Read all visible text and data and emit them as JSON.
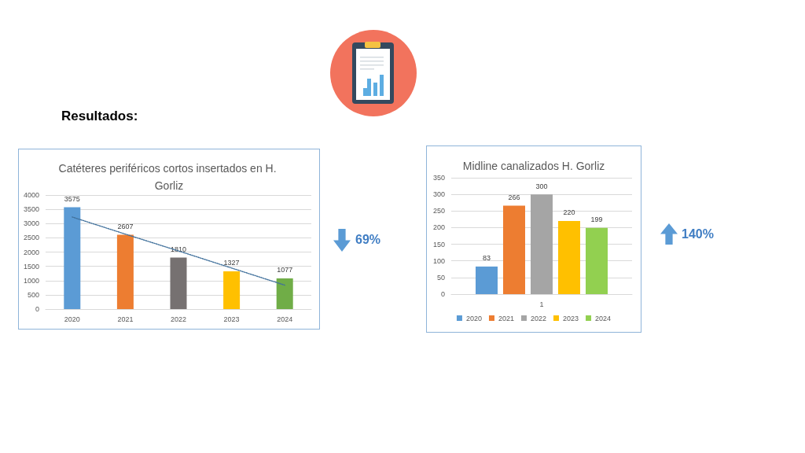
{
  "chart_data": [
    {
      "type": "bar",
      "title": "Catéteres periféricos cortos insertados en H. Gorliz",
      "categories": [
        "2020",
        "2021",
        "2022",
        "2023",
        "2024"
      ],
      "series": [
        {
          "values": [
            3575,
            2607,
            1810,
            1327,
            1077
          ],
          "colors": [
            "#5b9bd5",
            "#ed7d31",
            "#767171",
            "#ffc000",
            "#70ad47"
          ]
        },
        {
          "type": "line",
          "values": [
            3230,
            2630,
            2040,
            1440,
            840
          ],
          "value_labels": [
            null,
            null,
            null,
            null,
            null
          ],
          "color": "#41719c",
          "line_style": "dotted",
          "marker": "none"
        }
      ],
      "ylim": [
        0,
        4000
      ],
      "yticks": [
        0,
        500,
        1000,
        1500,
        2000,
        2500,
        3000,
        3500,
        4000
      ],
      "grid": "y",
      "data_labels": true,
      "annotations": [
        "Resultados:",
        "69%"
      ]
    },
    {
      "type": "bar",
      "title": "Midline canalizados H. Gorliz",
      "categories": [
        "1"
      ],
      "series": [
        {
          "name": "2020",
          "color": "#5b9bd5",
          "values": [
            83
          ]
        },
        {
          "name": "2021",
          "color": "#ed7d31",
          "values": [
            266
          ]
        },
        {
          "name": "2022",
          "color": "#a5a5a5",
          "values": [
            300
          ]
        },
        {
          "name": "2023",
          "color": "#ffc000",
          "values": [
            220
          ]
        },
        {
          "name": "2024",
          "color": "#92d050",
          "values": [
            199
          ]
        }
      ],
      "ylim": [
        0,
        350
      ],
      "yticks": [
        0,
        50,
        100,
        150,
        200,
        250,
        300,
        350
      ],
      "grid": "y",
      "data_labels": true,
      "legend": "bottom",
      "annotations": [
        "140%"
      ]
    }
  ]
}
